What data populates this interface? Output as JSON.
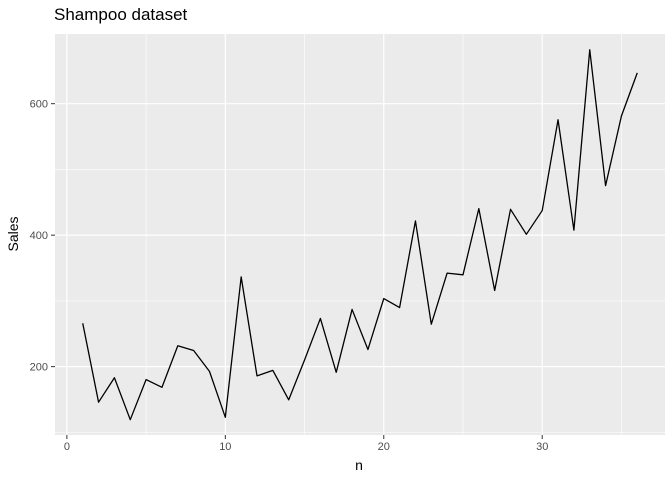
{
  "chart_data": {
    "type": "line",
    "title": "Shampoo dataset",
    "xlabel": "n",
    "ylabel": "Sales",
    "xlim": [
      -0.75,
      37.75
    ],
    "ylim": [
      96,
      706
    ],
    "x_ticks": [
      0,
      10,
      20,
      30
    ],
    "x_minor_ticks": [
      5,
      15,
      25,
      35
    ],
    "y_ticks": [
      200,
      400,
      600
    ],
    "y_minor_ticks": [
      100,
      300,
      500
    ],
    "grid": true,
    "colors": {
      "panel": "#ebebeb",
      "grid": "#ffffff",
      "line": "#000000"
    },
    "series": [
      {
        "x": [
          1,
          2,
          3,
          4,
          5,
          6,
          7,
          8,
          9,
          10,
          11,
          12,
          13,
          14,
          15,
          16,
          17,
          18,
          19,
          20,
          21,
          22,
          23,
          24,
          25,
          26,
          27,
          28,
          29,
          30,
          31,
          32,
          33,
          34,
          35,
          36
        ],
        "values": [
          266.0,
          145.9,
          183.1,
          119.3,
          180.3,
          168.5,
          231.8,
          224.5,
          192.8,
          122.9,
          336.5,
          185.9,
          194.3,
          149.5,
          210.1,
          273.3,
          191.4,
          287.0,
          226.0,
          303.6,
          289.9,
          421.6,
          264.5,
          342.3,
          339.7,
          440.4,
          315.9,
          439.3,
          401.3,
          437.4,
          575.5,
          407.6,
          682.0,
          475.3,
          581.3,
          646.9
        ]
      }
    ]
  }
}
